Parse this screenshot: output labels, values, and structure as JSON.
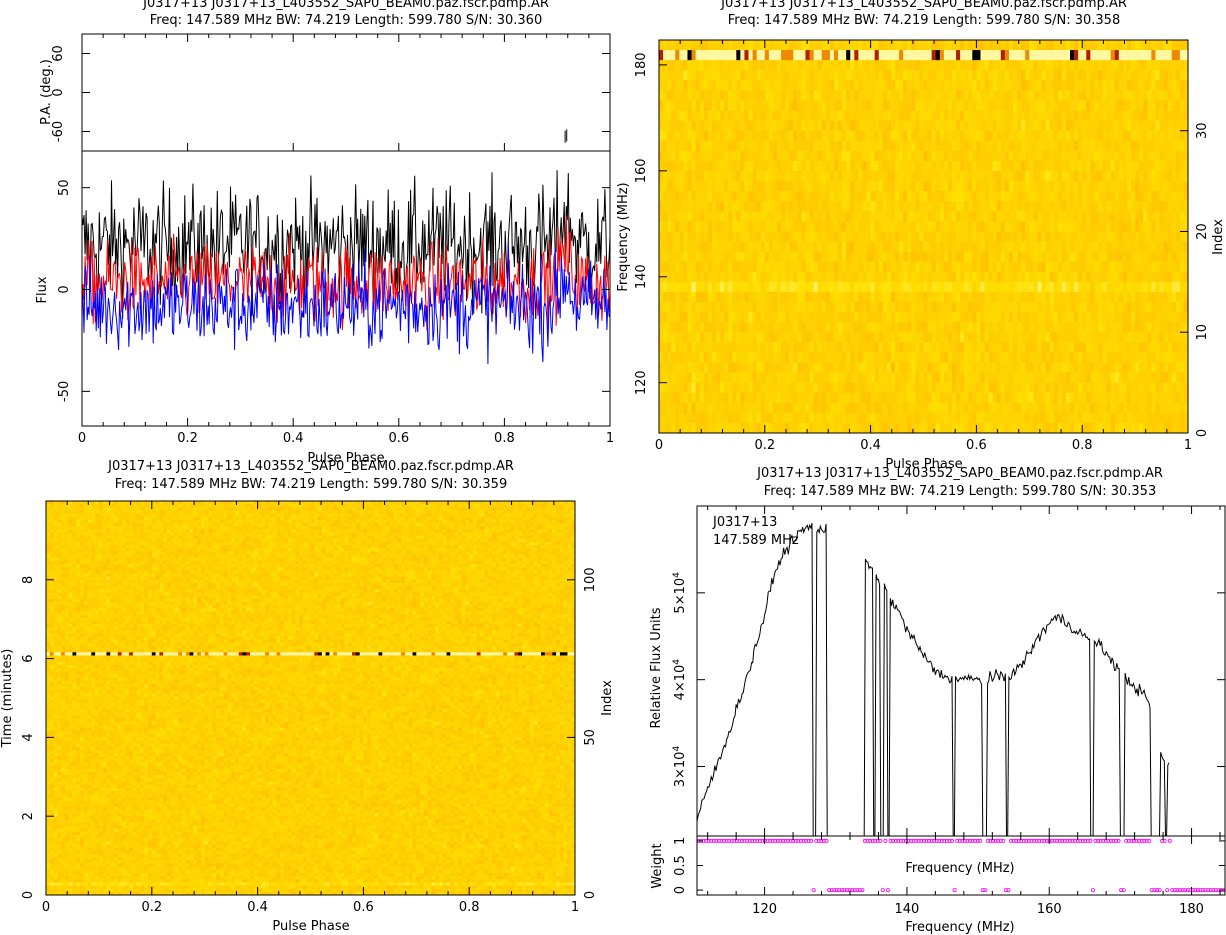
{
  "chart_data": [
    {
      "type": "line",
      "panel": "profile",
      "title_line1": "J0317+13 J0317+13_L403552_SAP0_BEAM0.paz.fscr.pdmp.AR",
      "title_line2": "Freq: 147.589 MHz BW: 74.219 Length: 599.780 S/N: 30.360",
      "xlabel": "Pulse Phase",
      "xlim": [
        0,
        1
      ],
      "x_ticks": [
        "0",
        "0.2",
        "0.4",
        "0.6",
        "0.8",
        "1"
      ],
      "pa_panel": {
        "ylabel": "P.A. (deg.)",
        "ylim": [
          -90,
          90
        ],
        "y_ticks": [
          "-60",
          "0",
          "60"
        ],
        "points": [
          {
            "x": 0.915,
            "y": -68
          },
          {
            "x": 0.918,
            "y": -66
          }
        ]
      },
      "flux_panel": {
        "ylabel": "Flux",
        "ylim": [
          -67,
          68
        ],
        "y_ticks": [
          "-50",
          "0",
          "50"
        ],
        "series": [
          {
            "color": "#000000",
            "mean": 22,
            "noise": 14
          },
          {
            "color": "#ff0000",
            "mean": 3,
            "noise": 10
          },
          {
            "color": "#0000ff",
            "mean": -8,
            "noise": 11
          }
        ]
      }
    },
    {
      "type": "heatmap",
      "panel": "frequency-phase",
      "title_line1": "J0317+13 J0317+13_L403552_SAP0_BEAM0.paz.fscr.pdmp.AR",
      "title_line2": "Freq: 147.589 MHz BW: 74.219 Length: 599.780 S/N: 30.358",
      "xlabel": "Pulse Phase",
      "ylabel": "Frequency (MHz)",
      "y2label": "Index",
      "xlim": [
        0,
        1
      ],
      "ylim": [
        110.5,
        184.7
      ],
      "y2lim": [
        0,
        39
      ],
      "x_ticks": [
        "0",
        "0.2",
        "0.4",
        "0.6",
        "0.8",
        "1"
      ],
      "y_ticks": [
        "120",
        "140",
        "160",
        "180"
      ],
      "y2_ticks": [
        "0",
        "10",
        "20",
        "30"
      ],
      "bright_band_mhz": 180,
      "faint_band_mhz": 138
    },
    {
      "type": "heatmap",
      "panel": "time-phase",
      "title_line1": "J0317+13 J0317+13_L403552_SAP0_BEAM0.paz.fscr.pdmp.AR",
      "title_line2": "Freq: 147.589 MHz BW: 74.219 Length: 599.780 S/N: 30.359",
      "xlabel": "Pulse Phase",
      "ylabel": "Time (minutes)",
      "y2label": "Index",
      "xlim": [
        0,
        1
      ],
      "ylim": [
        0,
        10
      ],
      "y2lim": [
        0,
        125
      ],
      "x_ticks": [
        "0",
        "0.2",
        "0.4",
        "0.6",
        "0.8",
        "1"
      ],
      "y_ticks": [
        "0",
        "2",
        "4",
        "6",
        "8"
      ],
      "y2_ticks": [
        "0",
        "50",
        "100"
      ],
      "bright_row_min": 6.1
    },
    {
      "type": "line",
      "panel": "bandpass",
      "title_line1": "J0317+13 J0317+13_L403552_SAP0_BEAM0.paz.fscr.pdmp.AR",
      "title_line2": "Freq: 147.589 MHz BW: 74.219 Length: 599.780 S/N: 30.353",
      "annotation1": "J0317+13",
      "annotation2": "147.589 MHz",
      "xlabel": "Frequency (MHz)",
      "xlabel_inner": "Frequency (MHz)",
      "ylabel": "Relative Flux Units",
      "xlim": [
        110.5,
        184.7
      ],
      "ylim": [
        22000,
        60000
      ],
      "x_ticks": [
        "120",
        "140",
        "160",
        "180"
      ],
      "y_ticks": [
        {
          "value": 30000,
          "label": "3×10",
          "exp": "4"
        },
        {
          "value": 40000,
          "label": "4×10",
          "exp": "4"
        },
        {
          "value": 50000,
          "label": "5×10",
          "exp": "4"
        }
      ],
      "curve": [
        [
          110.5,
          24000
        ],
        [
          111,
          25000
        ],
        [
          112,
          27500
        ],
        [
          113,
          29500
        ],
        [
          114,
          31500
        ],
        [
          115,
          34000
        ],
        [
          116,
          36500
        ],
        [
          117,
          39000
        ],
        [
          118,
          41500
        ],
        [
          119,
          44500
        ],
        [
          120,
          47500
        ],
        [
          121,
          51000
        ],
        [
          122,
          53500
        ],
        [
          123,
          55000
        ],
        [
          124,
          56000
        ],
        [
          125,
          57000
        ],
        [
          126,
          57500
        ],
        [
          127,
          57700
        ],
        [
          128,
          57300
        ],
        [
          128.8,
          57000
        ],
        [
          134,
          53500
        ],
        [
          135,
          53000
        ],
        [
          136,
          51500
        ],
        [
          137,
          50500
        ],
        [
          138,
          49000
        ],
        [
          139,
          47500
        ],
        [
          140,
          45800
        ],
        [
          141,
          44500
        ],
        [
          142,
          43200
        ],
        [
          143,
          42000
        ],
        [
          144,
          41000
        ],
        [
          145,
          40500
        ],
        [
          146,
          40300
        ],
        [
          147,
          40200
        ],
        [
          148,
          40100
        ],
        [
          149,
          40000
        ],
        [
          150,
          40000
        ],
        [
          151,
          40100
        ],
        [
          152,
          40200
        ],
        [
          153,
          40300
        ],
        [
          154,
          40500
        ],
        [
          155,
          40800
        ],
        [
          156,
          41600
        ],
        [
          157,
          42800
        ],
        [
          158,
          44200
        ],
        [
          159,
          45500
        ],
        [
          160,
          46500
        ],
        [
          161,
          47200
        ],
        [
          162,
          46800
        ],
        [
          163,
          46200
        ],
        [
          164,
          45500
        ],
        [
          165,
          45000
        ],
        [
          166,
          44500
        ],
        [
          167,
          44000
        ],
        [
          168,
          43000
        ],
        [
          169,
          42000
        ],
        [
          170,
          41000
        ],
        [
          171,
          40000
        ],
        [
          172,
          39200
        ],
        [
          173,
          38500
        ],
        [
          174,
          37500
        ],
        [
          175,
          32000
        ],
        [
          176,
          31000
        ],
        [
          177,
          30000
        ]
      ],
      "dropouts_mhz": [
        [
          126.8,
          127.2
        ],
        [
          128.8,
          134
        ],
        [
          135.2,
          135.5
        ],
        [
          136.3,
          136.7
        ],
        [
          137.2,
          137.5
        ],
        [
          146.4,
          146.8
        ],
        [
          150.6,
          151.2
        ],
        [
          153.9,
          154.3
        ],
        [
          165.8,
          166.2
        ],
        [
          170,
          170.5
        ],
        [
          174.2,
          175.6
        ],
        [
          176.3,
          176.6
        ]
      ],
      "weight_panel": {
        "ylabel": "Weight",
        "ylim": [
          -0.1,
          1.1
        ],
        "y_ticks": [
          "0",
          "0.5",
          "1"
        ],
        "marker_color": "#ff00ff"
      }
    }
  ]
}
